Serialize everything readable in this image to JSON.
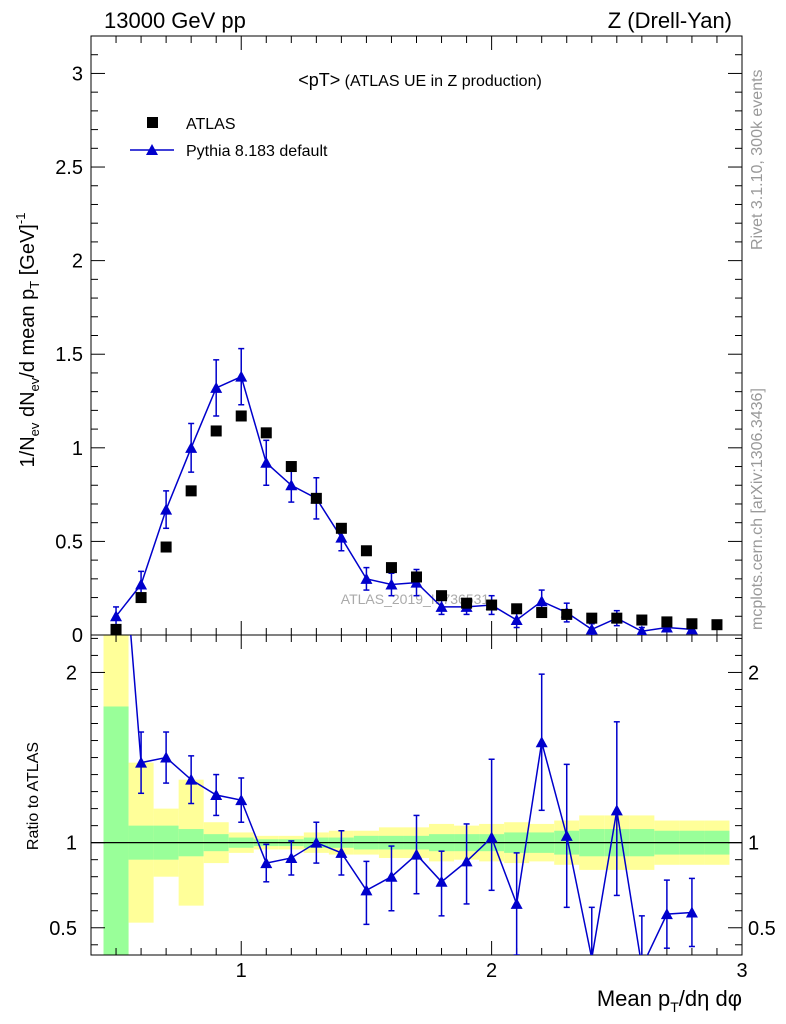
{
  "header": {
    "left": "13000 GeV pp",
    "right": "Z (Drell-Yan)"
  },
  "side_labels": {
    "rivet": "Rivet 3.1.10,  300k events",
    "mcplots": "mcplots.cern.ch [arXiv:1306.3436]"
  },
  "watermark": "ATLAS_2019_I1736531",
  "chart_data": {
    "type": "scatter",
    "title_main": "<pT>",
    "title_sub": " (ATLAS UE in Z production)",
    "xlabel_main": "Mean p",
    "xlabel_sub": "T",
    "xlabel_tail": "/dη dφ",
    "ylabel_main": "1/N",
    "ylabel_sub1": "ev",
    "ylabel_mid": " dN",
    "ylabel_sub2": "ev",
    "ylabel_mid2": "/d mean p",
    "ylabel_sub3": "T",
    "ylabel_unit": " [GeV]",
    "ylabel_sup": "-1",
    "ratio_ylabel": "Ratio to ATLAS",
    "xlim": [
      0.4,
      3.0
    ],
    "ylim": [
      0,
      3.2
    ],
    "ratio_ylim": [
      0.34,
      2.22
    ],
    "x_ticks": [
      1,
      2,
      3
    ],
    "x_tick_labels": [
      "1",
      "2",
      "3"
    ],
    "y_ticks": [
      0,
      0.5,
      1,
      1.5,
      2,
      2.5,
      3
    ],
    "y_tick_labels": [
      "0",
      "0.5",
      "1",
      "1.5",
      "2",
      "2.5",
      "3"
    ],
    "ratio_ticks": [
      0.5,
      1,
      2
    ],
    "ratio_tick_labels": [
      "0.5",
      "1",
      "2"
    ],
    "legend": [
      {
        "name": "ATLAS",
        "marker": "square",
        "color": "#000000"
      },
      {
        "name": "Pythia 8.183 default",
        "marker": "triangle",
        "color": "#0000cc"
      }
    ],
    "atlas": {
      "x": [
        0.5,
        0.6,
        0.7,
        0.8,
        0.9,
        1.0,
        1.1,
        1.2,
        1.3,
        1.4,
        1.5,
        1.6,
        1.7,
        1.8,
        1.9,
        2.0,
        2.1,
        2.2,
        2.3,
        2.4,
        2.5,
        2.6,
        2.7,
        2.8,
        2.9
      ],
      "y": [
        0.03,
        0.2,
        0.47,
        0.77,
        1.09,
        1.17,
        1.08,
        0.9,
        0.73,
        0.57,
        0.45,
        0.36,
        0.31,
        0.21,
        0.17,
        0.16,
        0.14,
        0.12,
        0.11,
        0.09,
        0.09,
        0.08,
        0.07,
        0.06,
        0.055
      ]
    },
    "pythia": {
      "x": [
        0.5,
        0.6,
        0.7,
        0.8,
        0.9,
        1.0,
        1.1,
        1.2,
        1.3,
        1.4,
        1.5,
        1.6,
        1.7,
        1.8,
        1.9,
        2.0,
        2.1,
        2.2,
        2.3,
        2.4,
        2.5,
        2.6,
        2.7,
        2.8
      ],
      "y": [
        0.1,
        0.27,
        0.67,
        1.0,
        1.32,
        1.38,
        0.92,
        0.8,
        0.73,
        0.52,
        0.3,
        0.27,
        0.28,
        0.15,
        0.15,
        0.16,
        0.08,
        0.18,
        0.12,
        0.03,
        0.09,
        0.02,
        0.04,
        0.03
      ],
      "err": [
        0.05,
        0.07,
        0.1,
        0.13,
        0.15,
        0.15,
        0.12,
        0.09,
        0.11,
        0.07,
        0.06,
        0.06,
        0.07,
        0.04,
        0.04,
        0.05,
        0.04,
        0.06,
        0.05,
        0.03,
        0.04,
        0.02,
        0.02,
        0.02
      ]
    },
    "ratio": {
      "x": [
        0.5,
        0.6,
        0.7,
        0.8,
        0.9,
        1.0,
        1.1,
        1.2,
        1.3,
        1.4,
        1.5,
        1.6,
        1.7,
        1.8,
        1.9,
        2.0,
        2.1,
        2.2,
        2.3,
        2.4,
        2.5,
        2.6,
        2.7,
        2.8
      ],
      "y": [
        3.3,
        1.47,
        1.5,
        1.37,
        1.28,
        1.25,
        0.88,
        0.91,
        1.0,
        0.94,
        0.72,
        0.8,
        0.93,
        0.77,
        0.89,
        1.03,
        0.64,
        1.59,
        1.04,
        0.32,
        1.19,
        0.27,
        0.58,
        0.59
      ],
      "err_low": [
        0,
        0.18,
        0.15,
        0.14,
        0.12,
        0.13,
        0.11,
        0.1,
        0.12,
        0.13,
        0.2,
        0.2,
        0.23,
        0.2,
        0.25,
        0.31,
        0.3,
        0.4,
        0.42,
        0.4,
        0.5,
        0.3,
        0.2,
        0.2
      ],
      "err_high": [
        0,
        0.18,
        0.15,
        0.14,
        0.12,
        0.13,
        0.11,
        0.1,
        0.12,
        0.13,
        0.17,
        0.18,
        0.23,
        0.18,
        0.22,
        0.46,
        0.3,
        0.4,
        0.42,
        0.3,
        0.52,
        0.3,
        0.2,
        0.2
      ]
    },
    "bands": {
      "edges": [
        0.45,
        0.55,
        0.65,
        0.75,
        0.85,
        0.95,
        1.05,
        1.15,
        1.25,
        1.35,
        1.45,
        1.55,
        1.65,
        1.75,
        1.85,
        1.95,
        2.05,
        2.15,
        2.25,
        2.35,
        2.45,
        2.55,
        2.65,
        2.75,
        2.85,
        2.95
      ],
      "green_low": [
        0.2,
        0.9,
        0.9,
        0.92,
        0.95,
        0.97,
        0.98,
        0.98,
        0.97,
        0.97,
        0.96,
        0.96,
        0.96,
        0.95,
        0.95,
        0.95,
        0.94,
        0.94,
        0.93,
        0.92,
        0.92,
        0.92,
        0.93,
        0.93,
        0.93
      ],
      "green_high": [
        1.8,
        1.1,
        1.1,
        1.08,
        1.05,
        1.03,
        1.02,
        1.02,
        1.03,
        1.03,
        1.04,
        1.04,
        1.04,
        1.05,
        1.05,
        1.05,
        1.06,
        1.06,
        1.07,
        1.08,
        1.08,
        1.08,
        1.07,
        1.07,
        1.07
      ],
      "yellow_low": [
        0.2,
        0.53,
        0.8,
        0.63,
        0.88,
        0.94,
        0.96,
        0.96,
        0.94,
        0.93,
        0.93,
        0.91,
        0.91,
        0.89,
        0.9,
        0.89,
        0.88,
        0.89,
        0.87,
        0.84,
        0.84,
        0.84,
        0.87,
        0.87,
        0.87
      ],
      "yellow_high": [
        2.22,
        1.47,
        1.2,
        1.37,
        1.12,
        1.06,
        1.04,
        1.04,
        1.06,
        1.07,
        1.07,
        1.09,
        1.09,
        1.11,
        1.1,
        1.11,
        1.12,
        1.11,
        1.13,
        1.16,
        1.16,
        1.16,
        1.13,
        1.13,
        1.13
      ]
    }
  }
}
